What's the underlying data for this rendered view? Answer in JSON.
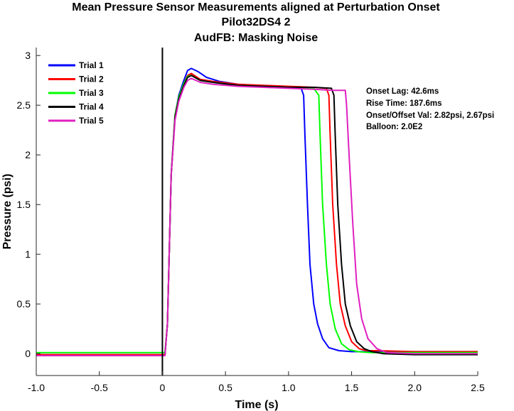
{
  "chart_data": {
    "type": "line",
    "title": [
      "Mean Pressure Sensor Measurements aligned at Perturbation Onset",
      "Pilot32DS4 2",
      "AudFB: Masking Noise"
    ],
    "xlabel": "Time (s)",
    "ylabel": "Pressure (psi)",
    "xlim": [
      -1.0,
      2.5
    ],
    "ylim": [
      -0.22,
      3.08
    ],
    "xticks": [
      -1.0,
      -0.5,
      0,
      0.5,
      1.0,
      1.5,
      2.0,
      2.5
    ],
    "xtick_labels": [
      "-1.0",
      "-0.5",
      "0",
      "0.5",
      "1.0",
      "1.5",
      "2.0",
      "2.5"
    ],
    "yticks": [
      0,
      0.5,
      1,
      1.5,
      2,
      2.5,
      3
    ],
    "ytick_labels": [
      "0",
      "0.5",
      "1",
      "1.5",
      "2",
      "2.5",
      "3"
    ],
    "grid": false,
    "legend_position": "top-left",
    "onset_line_x": 0,
    "series": [
      {
        "name": "Trial 1",
        "color": "#0000ff",
        "x": [
          -1.0,
          0.02,
          0.04,
          0.05,
          0.07,
          0.1,
          0.13,
          0.17,
          0.2,
          0.23,
          0.28,
          0.35,
          0.45,
          0.6,
          0.8,
          1.0,
          1.1,
          1.12,
          1.13,
          1.15,
          1.17,
          1.2,
          1.23,
          1.27,
          1.32,
          1.4,
          1.5,
          1.6,
          2.0,
          2.5
        ],
        "values": [
          -0.01,
          -0.01,
          0.3,
          0.8,
          1.8,
          2.4,
          2.6,
          2.75,
          2.85,
          2.87,
          2.84,
          2.78,
          2.74,
          2.71,
          2.69,
          2.68,
          2.67,
          2.6,
          2.2,
          1.5,
          0.9,
          0.5,
          0.3,
          0.15,
          0.06,
          0.03,
          0.02,
          0.02,
          0.02,
          0.02
        ]
      },
      {
        "name": "Trial 2",
        "color": "#ff0000",
        "x": [
          -1.0,
          0.02,
          0.04,
          0.05,
          0.07,
          0.1,
          0.13,
          0.17,
          0.2,
          0.23,
          0.3,
          0.4,
          0.6,
          0.8,
          1.0,
          1.2,
          1.3,
          1.32,
          1.33,
          1.35,
          1.38,
          1.41,
          1.45,
          1.5,
          1.56,
          1.62,
          1.7,
          2.0,
          2.5
        ],
        "values": [
          -0.01,
          -0.01,
          0.3,
          0.8,
          1.8,
          2.4,
          2.58,
          2.72,
          2.8,
          2.82,
          2.76,
          2.74,
          2.71,
          2.7,
          2.69,
          2.68,
          2.67,
          2.6,
          2.2,
          1.5,
          0.9,
          0.5,
          0.28,
          0.12,
          0.05,
          0.03,
          0.03,
          0.02,
          0.02
        ]
      },
      {
        "name": "Trial 3",
        "color": "#00ff00",
        "x": [
          -1.0,
          0.02,
          0.04,
          0.05,
          0.07,
          0.1,
          0.13,
          0.17,
          0.2,
          0.23,
          0.3,
          0.4,
          0.6,
          0.8,
          1.0,
          1.2,
          1.24,
          1.25,
          1.27,
          1.3,
          1.33,
          1.37,
          1.42,
          1.48,
          1.55,
          1.65,
          2.0,
          2.5
        ],
        "values": [
          0.01,
          0.01,
          0.3,
          0.8,
          1.8,
          2.4,
          2.58,
          2.72,
          2.79,
          2.8,
          2.75,
          2.73,
          2.7,
          2.69,
          2.68,
          2.67,
          2.6,
          2.2,
          1.5,
          0.9,
          0.5,
          0.25,
          0.1,
          0.04,
          0.02,
          0.01,
          0.01,
          0.01
        ]
      },
      {
        "name": "Trial 4",
        "color": "#000000",
        "x": [
          -1.0,
          0.02,
          0.04,
          0.05,
          0.07,
          0.1,
          0.13,
          0.17,
          0.2,
          0.23,
          0.3,
          0.4,
          0.6,
          0.8,
          1.0,
          1.2,
          1.34,
          1.36,
          1.37,
          1.39,
          1.42,
          1.45,
          1.49,
          1.54,
          1.6,
          1.66,
          1.75,
          2.0,
          2.5
        ],
        "values": [
          -0.02,
          -0.02,
          0.3,
          0.8,
          1.8,
          2.38,
          2.56,
          2.7,
          2.78,
          2.8,
          2.75,
          2.73,
          2.7,
          2.69,
          2.68,
          2.68,
          2.67,
          2.6,
          2.2,
          1.5,
          0.9,
          0.5,
          0.28,
          0.12,
          0.05,
          0.02,
          0.0,
          -0.01,
          -0.01
        ]
      },
      {
        "name": "Trial 5",
        "color": "#e020c0",
        "x": [
          -1.0,
          0.02,
          0.04,
          0.05,
          0.07,
          0.1,
          0.13,
          0.17,
          0.2,
          0.23,
          0.3,
          0.4,
          0.6,
          0.8,
          1.0,
          1.2,
          1.35,
          1.45,
          1.46,
          1.48,
          1.51,
          1.54,
          1.58,
          1.63,
          1.7,
          1.78,
          2.0,
          2.5
        ],
        "values": [
          -0.02,
          -0.02,
          0.3,
          0.8,
          1.8,
          2.35,
          2.54,
          2.68,
          2.75,
          2.77,
          2.73,
          2.71,
          2.69,
          2.68,
          2.67,
          2.66,
          2.65,
          2.65,
          2.5,
          2.0,
          1.3,
          0.7,
          0.35,
          0.15,
          0.05,
          0.01,
          0.0,
          0.0
        ]
      }
    ],
    "annotations": [
      "Onset Lag: 42.6ms",
      "Rise Time: 187.6ms",
      "Onset/Offset Val: 2.82psi, 2.67psi",
      "Balloon: 2.0E2"
    ]
  }
}
